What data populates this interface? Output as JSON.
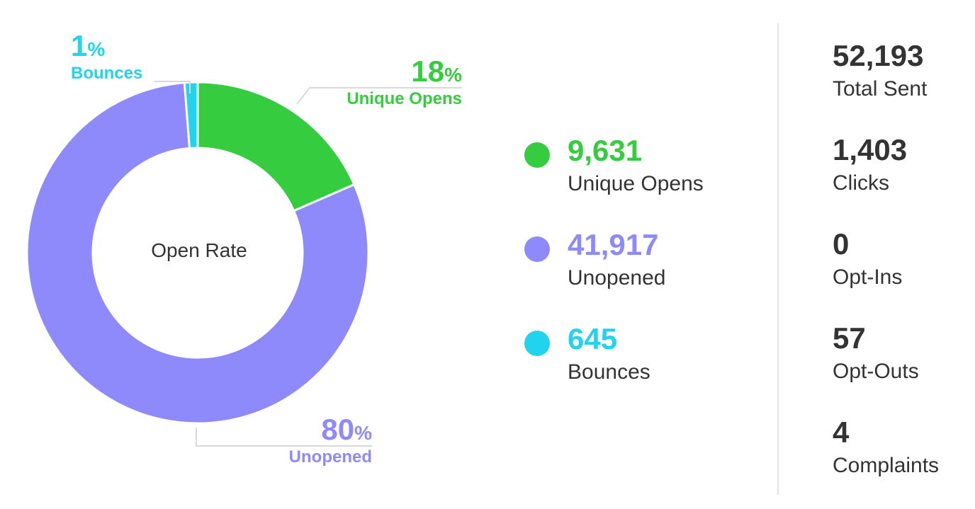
{
  "chart_data": {
    "type": "pie",
    "title": "Open Rate",
    "slices": [
      {
        "name": "Unique Opens",
        "value": 9631,
        "percent_label": "18",
        "color": "#35cc3f"
      },
      {
        "name": "Unopened",
        "value": 41917,
        "percent_label": "80",
        "color": "#8e8afc"
      },
      {
        "name": "Bounces",
        "value": 645,
        "percent_label": "1",
        "color": "#22d3ee"
      }
    ],
    "legend": [
      {
        "value": "9,631",
        "label": "Unique Opens",
        "color": "#35cc3f"
      },
      {
        "value": "41,917",
        "label": "Unopened",
        "color": "#8e8afc"
      },
      {
        "value": "645",
        "label": "Bounces",
        "color": "#22d3ee"
      }
    ],
    "percent_sign": "%"
  },
  "stats": [
    {
      "value": "52,193",
      "label": "Total Sent"
    },
    {
      "value": "1,403",
      "label": "Clicks"
    },
    {
      "value": "0",
      "label": "Opt-Ins"
    },
    {
      "value": "57",
      "label": "Opt-Outs"
    },
    {
      "value": "4",
      "label": "Complaints"
    }
  ]
}
